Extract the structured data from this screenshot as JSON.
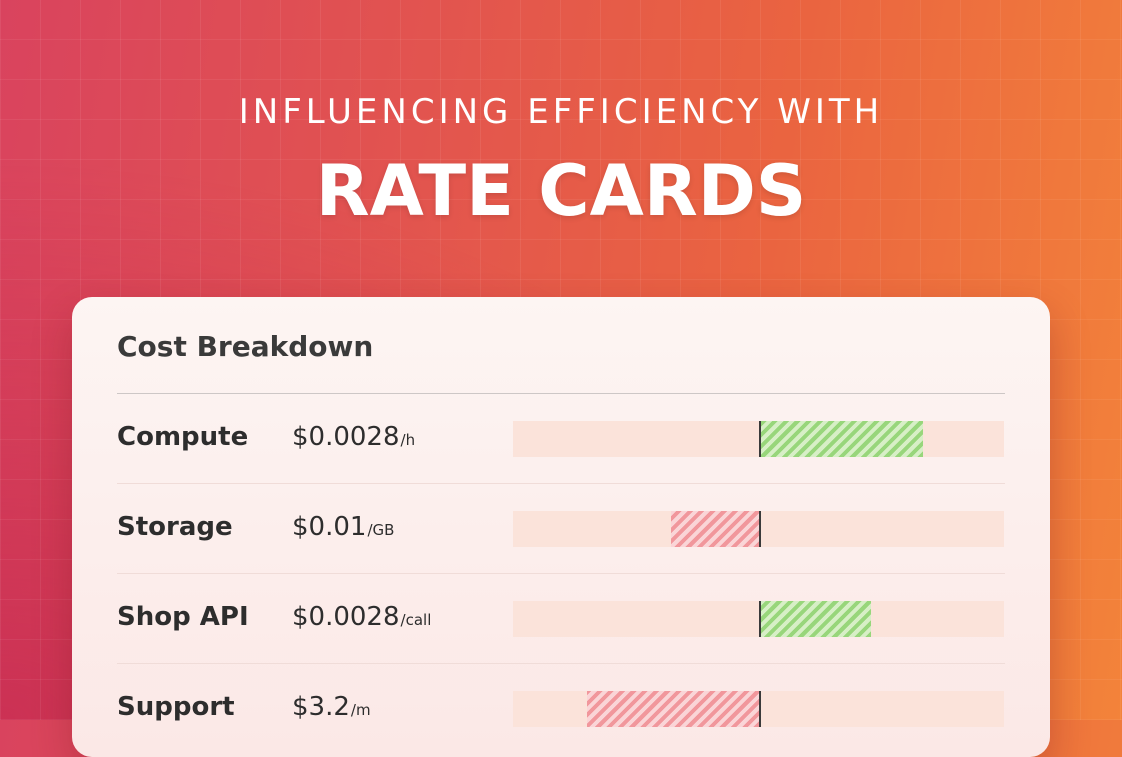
{
  "hero": {
    "eyebrow": "INFLUENCING EFFICIENCY WITH",
    "title": "RATE CARDS"
  },
  "card": {
    "title": "Cost Breakdown",
    "rows": [
      {
        "label": "Compute",
        "price": "$0.0028",
        "unit": "/h",
        "direction": "positive",
        "magnitude": 0.66
      },
      {
        "label": "Storage",
        "price": "$0.01",
        "unit": "/GB",
        "direction": "negative",
        "magnitude": 0.36
      },
      {
        "label": "Shop API",
        "price": "$0.0028",
        "unit": "/call",
        "direction": "positive",
        "magnitude": 0.45
      },
      {
        "label": "Support",
        "price": "$3.2",
        "unit": "/m",
        "direction": "negative",
        "magnitude": 0.7
      }
    ]
  },
  "colors": {
    "positive_bar": "#98d67b",
    "negative_bar": "#f1979c",
    "track": "#fbe3da"
  }
}
